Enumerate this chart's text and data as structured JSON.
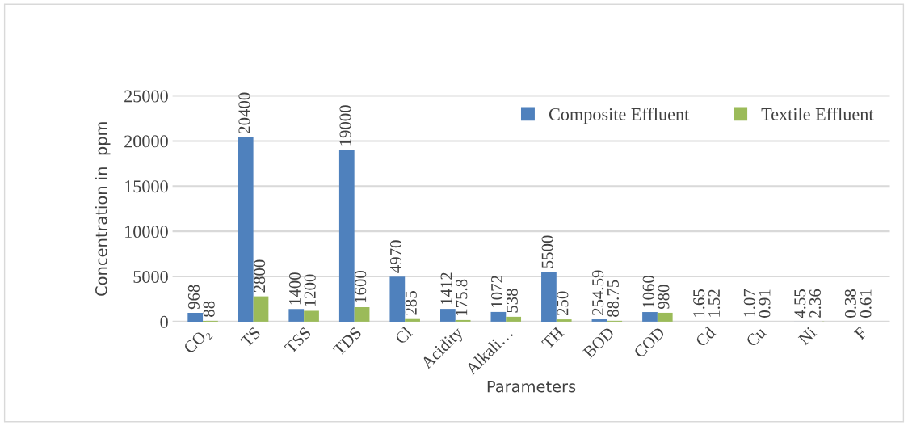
{
  "chart_data": {
    "type": "bar",
    "xlabel": "Parameters",
    "ylabel": "Concentration in  ppm",
    "categories": [
      "CO₂",
      "TS",
      "TSS",
      "TDS",
      "Cl",
      "Acidity",
      "Alkali…",
      "TH",
      "BOD",
      "COD",
      "Cd",
      "Cu",
      "Ni",
      "F"
    ],
    "series": [
      {
        "name": "Composite Effluent",
        "color": "#4f81bd",
        "values": [
          968,
          20400,
          1400,
          19000,
          4970,
          1412,
          1072,
          5500,
          254.59,
          1060,
          1.65,
          1.07,
          4.55,
          0.38
        ]
      },
      {
        "name": "Textile Effluent",
        "color": "#9bbb59",
        "values": [
          88,
          2800,
          1200,
          1600,
          285,
          175.8,
          538,
          250,
          88.75,
          980,
          1.52,
          0.91,
          2.36,
          0.61
        ]
      }
    ],
    "ylim": [
      0,
      25000
    ],
    "yticks": [
      0,
      5000,
      10000,
      15000,
      20000,
      25000
    ],
    "grid": "y",
    "legend": "top right",
    "data_labels": true
  }
}
